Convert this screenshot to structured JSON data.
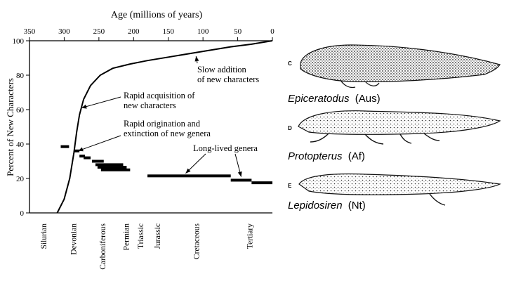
{
  "chart_data": {
    "type": "line",
    "title": "",
    "xlabel": "Age (millions of years)",
    "ylabel": "Percent of New Characters",
    "xlim": [
      350,
      0
    ],
    "ylim": [
      0,
      100
    ],
    "x_ticks": [
      "350",
      "300",
      "250",
      "200",
      "150",
      "100",
      "50",
      "0"
    ],
    "x_tick_values": [
      350,
      300,
      250,
      200,
      150,
      100,
      50,
      0
    ],
    "y_ticks": [
      "0",
      "20",
      "40",
      "60",
      "80",
      "100"
    ],
    "y_tick_values": [
      0,
      20,
      40,
      60,
      80,
      100
    ],
    "grid": false,
    "curve": {
      "x": [
        310,
        300,
        292,
        286,
        282,
        278,
        272,
        262,
        248,
        230,
        205,
        180,
        150,
        120,
        90,
        60,
        30,
        0
      ],
      "y": [
        0,
        8,
        20,
        35,
        47,
        57,
        66,
        74,
        80,
        84,
        86.5,
        88.5,
        90.5,
        92.5,
        94.5,
        96.5,
        98,
        100
      ]
    },
    "genera_ranges": [
      {
        "start": 305,
        "end": 293,
        "percent": 38.5
      },
      {
        "start": 285,
        "end": 278,
        "percent": 36
      },
      {
        "start": 278,
        "end": 270,
        "percent": 33
      },
      {
        "start": 272,
        "end": 262,
        "percent": 32
      },
      {
        "start": 260,
        "end": 243,
        "percent": 30
      },
      {
        "start": 255,
        "end": 215,
        "percent": 28
      },
      {
        "start": 252,
        "end": 210,
        "percent": 26.5
      },
      {
        "start": 247,
        "end": 205,
        "percent": 25
      },
      {
        "start": 180,
        "end": 60,
        "percent": 21.5
      },
      {
        "start": 60,
        "end": 30,
        "percent": 19
      },
      {
        "start": 30,
        "end": 0,
        "percent": 17.5
      }
    ],
    "annotations": [
      {
        "lines": [
          "Slow addition",
          "of new characters"
        ],
        "target": [
          110,
          91
        ]
      },
      {
        "lines": [
          "Rapid acquisition of",
          "new characters"
        ],
        "target": [
          275,
          61
        ]
      },
      {
        "lines": [
          "Rapid origination and",
          "extinction of new genera"
        ],
        "target": [
          280,
          36
        ]
      },
      {
        "lines": [
          "Long-lived genera"
        ],
        "targets": [
          [
            125,
            23
          ],
          [
            45,
            21
          ]
        ]
      }
    ],
    "periods": [
      {
        "name": "Silurian",
        "age": 330
      },
      {
        "name": "Devonian",
        "age": 287
      },
      {
        "name": "Carboniferous",
        "age": 245
      },
      {
        "name": "Permian",
        "age": 211
      },
      {
        "name": "Triassic",
        "age": 190
      },
      {
        "name": "Jurassic",
        "age": 166
      },
      {
        "name": "Cretaceous",
        "age": 110
      },
      {
        "name": "Tertiary",
        "age": 33
      }
    ]
  },
  "fish": [
    {
      "letter": "C",
      "genus": "Epiceratodus",
      "region": "(Aus)"
    },
    {
      "letter": "D",
      "genus": "Protopterus",
      "region": "(Af)"
    },
    {
      "letter": "E",
      "genus": "Lepidosiren",
      "region": "(Nt)"
    }
  ]
}
